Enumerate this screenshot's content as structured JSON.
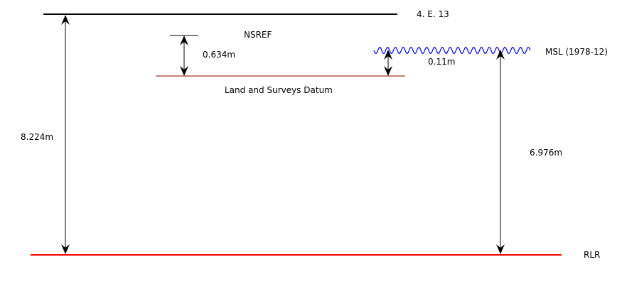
{
  "colors": {
    "reference_line": "#000000",
    "datum_line": "#8b0000",
    "msl_wave": "#0000ff",
    "rlr_line": "#ff0000",
    "dimension_arrow": "#000000",
    "text": "#000000"
  },
  "labels": {
    "top_benchmark": "4. E. 13",
    "nsref": "NSREF",
    "nsref_offset": "0.634m",
    "land_surveys_datum": "Land and Surveys Datum",
    "msl": "MSL (1978-12)",
    "msl_offset": "0.11m",
    "benchmark_height": "8.224m",
    "msl_height": "6.976m",
    "rlr": "RLR"
  }
}
